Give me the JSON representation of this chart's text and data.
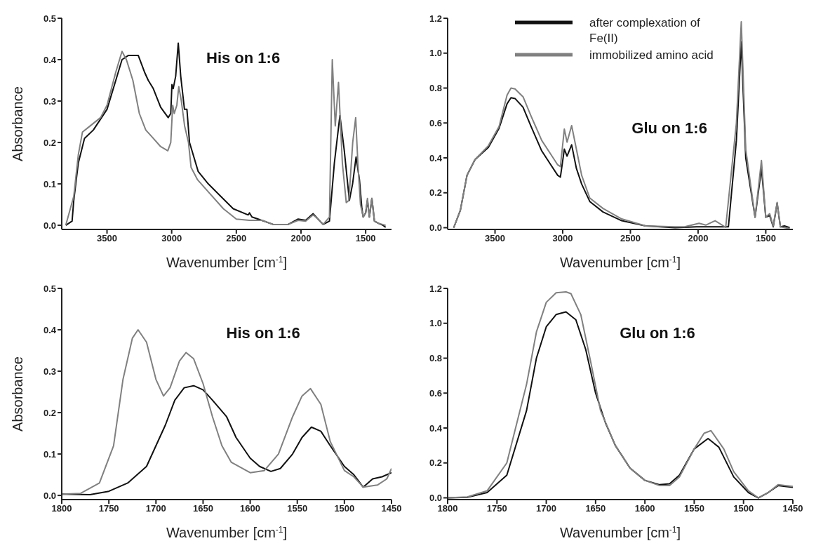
{
  "chart_data": [
    {
      "type": "line",
      "annotations": [
        "His on 1:6"
      ],
      "xlabel": "Wavenumber [cm$^{-1}$]",
      "ylabel": "Absorbance",
      "xlim": [
        3850,
        1300
      ],
      "xticks": [
        3500,
        3000,
        2500,
        2000,
        1500
      ],
      "ylim": [
        -0.01,
        0.5
      ],
      "yticks": [
        {
          "value": 0,
          "label": "0.0"
        },
        {
          "value": 0.1,
          "label": "0.1"
        },
        {
          "value": 0.2,
          "label": "0.2"
        },
        {
          "value": 0.3,
          "label": "0.3"
        },
        {
          "value": 0.4,
          "label": "0.4"
        },
        {
          "value": 0.5,
          "label": "0.5"
        }
      ],
      "series": [
        {
          "color": "#111111",
          "x": [
            3819,
            3770,
            3757,
            3722,
            3674,
            3606,
            3500,
            3432,
            3384,
            3336,
            3258,
            3210,
            3181,
            3142,
            3085,
            3027,
            3007,
            2998,
            2988,
            2969,
            2949,
            2930,
            2901,
            2882,
            2862,
            2795,
            2717,
            2621,
            2524,
            2408,
            2398,
            2379,
            2331,
            2215,
            2099,
            2022,
            1964,
            1906,
            1868,
            1829,
            1780,
            1742,
            1699,
            1665,
            1626,
            1601,
            1574,
            1548,
            1529,
            1519,
            1500,
            1486,
            1471,
            1452,
            1432,
            1403,
            1365,
            1345
          ],
          "values": [
            0.0,
            0.01,
            0.06,
            0.15,
            0.21,
            0.23,
            0.28,
            0.35,
            0.4,
            0.41,
            0.41,
            0.37,
            0.35,
            0.33,
            0.285,
            0.26,
            0.27,
            0.34,
            0.33,
            0.36,
            0.44,
            0.36,
            0.28,
            0.28,
            0.2,
            0.13,
            0.1,
            0.07,
            0.04,
            0.025,
            0.03,
            0.02,
            0.015,
            0.002,
            0.002,
            0.015,
            0.012,
            0.028,
            0.015,
            0.002,
            0.01,
            0.15,
            0.265,
            0.18,
            0.06,
            0.1,
            0.165,
            0.11,
            0.04,
            0.02,
            0.03,
            0.06,
            0.02,
            0.065,
            0.01,
            0.005,
            0.0,
            -0.005
          ]
        },
        {
          "color": "#808080",
          "x": [
            3819,
            3757,
            3722,
            3690,
            3650,
            3550,
            3500,
            3432,
            3384,
            3350,
            3300,
            3250,
            3200,
            3142,
            3085,
            3030,
            3007,
            2992,
            2980,
            2960,
            2945,
            2925,
            2900,
            2870,
            2850,
            2800,
            2700,
            2600,
            2500,
            2400,
            2300,
            2215,
            2099,
            2022,
            1964,
            1906,
            1868,
            1829,
            1780,
            1758,
            1735,
            1710,
            1680,
            1650,
            1630,
            1600,
            1577,
            1560,
            1540,
            1519,
            1500,
            1486,
            1471,
            1452,
            1432,
            1403,
            1345
          ],
          "values": [
            0.0,
            0.07,
            0.17,
            0.225,
            0.235,
            0.26,
            0.29,
            0.37,
            0.42,
            0.4,
            0.35,
            0.27,
            0.23,
            0.21,
            0.19,
            0.18,
            0.2,
            0.29,
            0.27,
            0.29,
            0.335,
            0.3,
            0.24,
            0.2,
            0.14,
            0.11,
            0.075,
            0.04,
            0.015,
            0.012,
            0.012,
            0.002,
            0.002,
            0.012,
            0.01,
            0.025,
            0.015,
            0.002,
            0.02,
            0.4,
            0.24,
            0.345,
            0.15,
            0.055,
            0.06,
            0.2,
            0.26,
            0.15,
            0.05,
            0.02,
            0.03,
            0.065,
            0.02,
            0.065,
            0.01,
            0.005,
            0.0
          ]
        }
      ]
    },
    {
      "type": "line",
      "annotations": [
        "Glu on 1:6"
      ],
      "xlabel": "Wavenumber [cm$^{-1}$]",
      "legend": "top",
      "xlim": [
        3850,
        1300
      ],
      "xticks": [
        3500,
        3000,
        2500,
        2000,
        1500
      ],
      "ylim": [
        -0.01,
        1.2
      ],
      "yticks": [
        {
          "value": 0,
          "label": "0.0"
        },
        {
          "value": 0.2,
          "label": "0.2"
        },
        {
          "value": 0.4,
          "label": "0.4"
        },
        {
          "value": 0.6,
          "label": "0.6"
        },
        {
          "value": 0.8,
          "label": "0.8"
        },
        {
          "value": 1,
          "label": "1.0"
        },
        {
          "value": 1.2,
          "label": "1.2"
        }
      ],
      "series": [
        {
          "name": "after complexation of Fe(II)",
          "color": "#111111",
          "x": [
            3805,
            3756,
            3707,
            3648,
            3549,
            3470,
            3411,
            3382,
            3352,
            3293,
            3234,
            3155,
            3096,
            3037,
            3017,
            2988,
            2968,
            2934,
            2899,
            2860,
            2800,
            2702,
            2564,
            2387,
            2170,
            2012,
            1776,
            1717,
            1681,
            1648,
            1579,
            1532,
            1500,
            1471,
            1445,
            1416,
            1392,
            1362,
            1323
          ],
          "values": [
            0.0,
            0.1,
            0.3,
            0.39,
            0.46,
            0.57,
            0.71,
            0.745,
            0.74,
            0.69,
            0.58,
            0.44,
            0.37,
            0.3,
            0.29,
            0.45,
            0.41,
            0.475,
            0.34,
            0.25,
            0.15,
            0.09,
            0.04,
            0.01,
            0.0,
            0.005,
            0.005,
            0.5,
            1.065,
            0.4,
            0.06,
            0.34,
            0.06,
            0.07,
            0.005,
            0.14,
            0.005,
            0.01,
            0.0
          ]
        },
        {
          "name": "immobilized amino acid",
          "color": "#808080",
          "x": [
            3805,
            3756,
            3707,
            3648,
            3549,
            3470,
            3411,
            3382,
            3352,
            3293,
            3234,
            3155,
            3096,
            3037,
            3017,
            2988,
            2968,
            2934,
            2899,
            2860,
            2800,
            2702,
            2564,
            2387,
            2170,
            2100,
            1993,
            1943,
            1874,
            1796,
            1717,
            1681,
            1648,
            1579,
            1532,
            1500,
            1471,
            1445,
            1416,
            1392,
            1323
          ],
          "values": [
            0.0,
            0.1,
            0.3,
            0.39,
            0.47,
            0.58,
            0.76,
            0.8,
            0.795,
            0.75,
            0.64,
            0.5,
            0.43,
            0.36,
            0.35,
            0.565,
            0.49,
            0.585,
            0.45,
            0.3,
            0.17,
            0.11,
            0.05,
            0.01,
            0.005,
            0.005,
            0.025,
            0.015,
            0.04,
            0.002,
            0.6,
            1.18,
            0.45,
            0.06,
            0.385,
            0.06,
            0.08,
            0.01,
            0.145,
            0.005,
            -0.005
          ]
        }
      ]
    },
    {
      "type": "line",
      "annotations": [
        "His on 1:6"
      ],
      "xlabel": "Wavenumber [cm$^{-1}$]",
      "ylabel": "Absorbance",
      "xlim": [
        1800,
        1450
      ],
      "xticks": [
        1800,
        1750,
        1700,
        1650,
        1600,
        1550,
        1500,
        1450
      ],
      "ylim": [
        -0.01,
        0.5
      ],
      "yticks": [
        {
          "value": 0,
          "label": "0.0"
        },
        {
          "value": 0.1,
          "label": "0.1"
        },
        {
          "value": 0.2,
          "label": "0.2"
        },
        {
          "value": 0.3,
          "label": "0.3"
        },
        {
          "value": 0.4,
          "label": "0.4"
        },
        {
          "value": 0.5,
          "label": "0.5"
        }
      ],
      "series": [
        {
          "color": "#111111",
          "x": [
            1800,
            1770,
            1750,
            1730,
            1710,
            1700,
            1690,
            1680,
            1670,
            1660,
            1650,
            1640,
            1625,
            1615,
            1600,
            1590,
            1578,
            1568,
            1555,
            1545,
            1535,
            1525,
            1515,
            1500,
            1490,
            1480,
            1470,
            1460,
            1450
          ],
          "values": [
            0.003,
            0.002,
            0.01,
            0.03,
            0.07,
            0.12,
            0.17,
            0.23,
            0.26,
            0.265,
            0.255,
            0.23,
            0.19,
            0.14,
            0.09,
            0.07,
            0.058,
            0.065,
            0.1,
            0.14,
            0.165,
            0.155,
            0.12,
            0.07,
            0.05,
            0.02,
            0.04,
            0.045,
            0.055
          ]
        },
        {
          "color": "#808080",
          "x": [
            1800,
            1780,
            1760,
            1745,
            1735,
            1725,
            1719,
            1710,
            1700,
            1692,
            1685,
            1675,
            1668,
            1660,
            1650,
            1640,
            1630,
            1620,
            1600,
            1585,
            1570,
            1555,
            1545,
            1536,
            1525,
            1515,
            1500,
            1490,
            1480,
            1465,
            1455,
            1450
          ],
          "values": [
            0.003,
            0.005,
            0.03,
            0.12,
            0.28,
            0.38,
            0.4,
            0.37,
            0.28,
            0.24,
            0.26,
            0.325,
            0.345,
            0.33,
            0.27,
            0.19,
            0.12,
            0.08,
            0.055,
            0.06,
            0.1,
            0.19,
            0.24,
            0.258,
            0.22,
            0.13,
            0.06,
            0.045,
            0.02,
            0.025,
            0.04,
            0.065
          ]
        }
      ]
    },
    {
      "type": "line",
      "annotations": [
        "Glu on 1:6"
      ],
      "xlabel": "Wavenumber [cm$^{-1}$]",
      "xlim": [
        1800,
        1450
      ],
      "xticks": [
        1800,
        1750,
        1700,
        1650,
        1600,
        1550,
        1500,
        1450
      ],
      "ylim": [
        -0.01,
        1.2
      ],
      "yticks": [
        {
          "value": 0,
          "label": "0.0"
        },
        {
          "value": 0.2,
          "label": "0.2"
        },
        {
          "value": 0.4,
          "label": "0.4"
        },
        {
          "value": 0.6,
          "label": "0.6"
        },
        {
          "value": 0.8,
          "label": "0.8"
        },
        {
          "value": 1,
          "label": "1.0"
        },
        {
          "value": 1.2,
          "label": "1.2"
        }
      ],
      "series": [
        {
          "color": "#111111",
          "x": [
            1800,
            1780,
            1760,
            1740,
            1720,
            1710,
            1700,
            1690,
            1680,
            1670,
            1660,
            1650,
            1640,
            1630,
            1615,
            1600,
            1585,
            1575,
            1565,
            1550,
            1536,
            1525,
            1510,
            1495,
            1485,
            1475,
            1465,
            1458,
            1450
          ],
          "values": [
            0.0,
            0.003,
            0.03,
            0.13,
            0.5,
            0.8,
            0.98,
            1.05,
            1.065,
            1.02,
            0.85,
            0.6,
            0.43,
            0.3,
            0.17,
            0.1,
            0.075,
            0.08,
            0.13,
            0.28,
            0.34,
            0.29,
            0.12,
            0.03,
            0.0,
            0.03,
            0.07,
            0.065,
            0.06
          ]
        },
        {
          "color": "#808080",
          "x": [
            1800,
            1780,
            1760,
            1740,
            1720,
            1710,
            1700,
            1690,
            1680,
            1675,
            1665,
            1655,
            1645,
            1630,
            1615,
            1600,
            1585,
            1575,
            1565,
            1550,
            1540,
            1533,
            1520,
            1510,
            1495,
            1485,
            1475,
            1465,
            1458,
            1450
          ],
          "values": [
            0.0,
            0.005,
            0.04,
            0.2,
            0.65,
            0.95,
            1.12,
            1.175,
            1.18,
            1.17,
            1.05,
            0.78,
            0.5,
            0.3,
            0.17,
            0.1,
            0.07,
            0.07,
            0.12,
            0.28,
            0.37,
            0.385,
            0.28,
            0.15,
            0.04,
            0.0,
            0.03,
            0.075,
            0.07,
            0.065
          ]
        }
      ]
    }
  ]
}
